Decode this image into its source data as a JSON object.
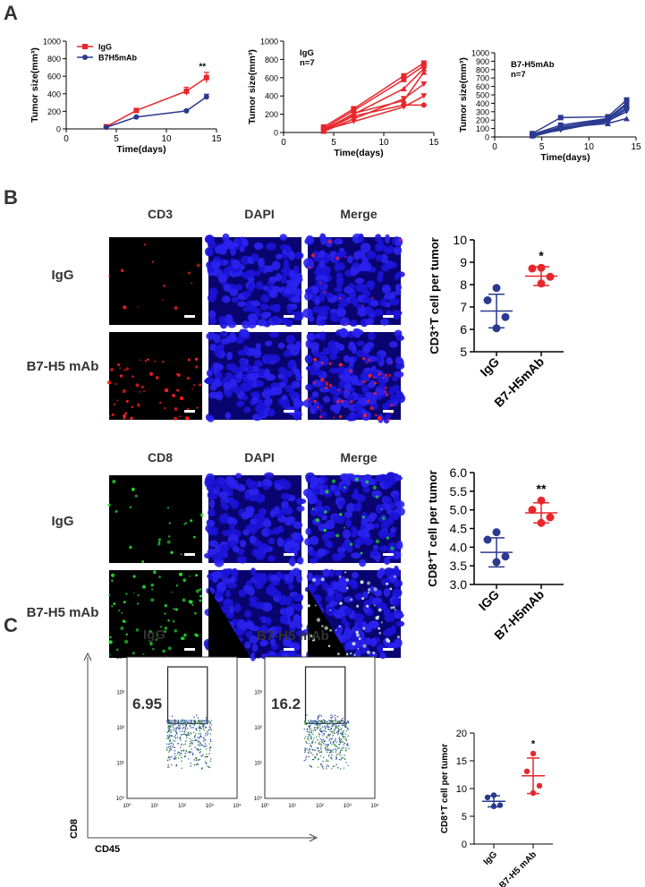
{
  "panels": {
    "a": "A",
    "b": "B",
    "c": "C"
  },
  "colors": {
    "igg": "#e8262b",
    "b7h5": "#2b3990",
    "dapi": "#1a12c8",
    "cd3": "#ff2020",
    "cd8": "#22dd33"
  },
  "chart_data": [
    {
      "type": "line",
      "id": "a1",
      "xlabel": "Time(days)",
      "ylabel": "Tumor size(mm³)",
      "xlim": [
        0,
        15
      ],
      "ylim": [
        0,
        1000
      ],
      "xticks": [
        0,
        5,
        10,
        15
      ],
      "yticks": [
        0,
        200,
        400,
        600,
        800,
        1000
      ],
      "x": [
        4,
        7,
        12,
        14
      ],
      "series": [
        {
          "name": "IgG",
          "color": "#e8262b",
          "marker": "square",
          "values": [
            25,
            210,
            430,
            585
          ],
          "err": [
            5,
            15,
            45,
            60
          ]
        },
        {
          "name": "B7H5mAb",
          "color": "#2b3990",
          "marker": "circle",
          "values": [
            18,
            135,
            205,
            365
          ],
          "err": [
            5,
            10,
            15,
            30
          ]
        }
      ],
      "annotations": [
        {
          "text": "**",
          "x": 13.6,
          "y": 680
        }
      ]
    },
    {
      "type": "line",
      "id": "a2",
      "title": "IgG",
      "subtitle": "n=7",
      "xlabel": "Time(days)",
      "ylabel": "Tumor size(mm³)",
      "xlim": [
        0,
        15
      ],
      "ylim": [
        0,
        1000
      ],
      "xticks": [
        0,
        5,
        10,
        15
      ],
      "yticks": [
        0,
        200,
        400,
        600,
        800,
        1000
      ],
      "x": [
        4,
        7,
        12,
        14
      ],
      "color": "#e8262b",
      "series": [
        {
          "name": "m1",
          "values": [
            60,
            260,
            620,
            760
          ]
        },
        {
          "name": "m2",
          "values": [
            40,
            240,
            580,
            730
          ]
        },
        {
          "name": "m3",
          "values": [
            30,
            200,
            480,
            700
          ]
        },
        {
          "name": "m4",
          "values": [
            20,
            180,
            300,
            300
          ]
        },
        {
          "name": "m5",
          "values": [
            10,
            150,
            370,
            530
          ]
        },
        {
          "name": "m6",
          "values": [
            15,
            210,
            350,
            660
          ]
        },
        {
          "name": "m7",
          "values": [
            25,
            120,
            280,
            400
          ]
        }
      ]
    },
    {
      "type": "line",
      "id": "a3",
      "title": "B7-H5mAb",
      "subtitle": "n=7",
      "xlabel": "Time(days)",
      "ylabel": "Tumor size(mm³)",
      "xlim": [
        0,
        15
      ],
      "ylim": [
        0,
        1000
      ],
      "xticks": [
        0,
        5,
        10,
        15
      ],
      "yticks": [
        0,
        100,
        200,
        300,
        400,
        500,
        600,
        700,
        800,
        900,
        1000
      ],
      "x": [
        4,
        7,
        12,
        14
      ],
      "color": "#2b3990",
      "series": [
        {
          "name": "m1",
          "values": [
            40,
            230,
            240,
            440
          ]
        },
        {
          "name": "m2",
          "values": [
            30,
            140,
            220,
            400
          ]
        },
        {
          "name": "m3",
          "values": [
            20,
            120,
            210,
            380
          ]
        },
        {
          "name": "m4",
          "values": [
            10,
            100,
            200,
            350
          ]
        },
        {
          "name": "m5",
          "values": [
            5,
            90,
            180,
            330
          ]
        },
        {
          "name": "m6",
          "values": [
            15,
            110,
            160,
            220
          ]
        },
        {
          "name": "m7",
          "values": [
            25,
            80,
            190,
            300
          ]
        }
      ]
    },
    {
      "type": "scatter",
      "id": "b1",
      "ylabel": "CD3⁺T cell per tumor",
      "categories": [
        "IgG",
        "B7-H5mAb"
      ],
      "ylim": [
        5,
        10
      ],
      "yticks": [
        5,
        6,
        7,
        8,
        9,
        10
      ],
      "series": [
        {
          "name": "IgG",
          "color": "#2b3990",
          "points": [
            7.85,
            7.3,
            6.55,
            6.05
          ],
          "mean": 6.82,
          "sd": 0.75
        },
        {
          "name": "B7-H5mAb",
          "color": "#e8262b",
          "points": [
            8.75,
            8.72,
            8.35,
            8.05
          ],
          "mean": 8.38,
          "sd": 0.42
        }
      ],
      "annotations": [
        {
          "text": "*",
          "category": "B7-H5mAb",
          "y": 9.1
        }
      ]
    },
    {
      "type": "scatter",
      "id": "b2",
      "ylabel": "CD8⁺T cell per tumor",
      "categories": [
        "IGG",
        "B7-H5mAb"
      ],
      "ylim": [
        3.0,
        6.0
      ],
      "yticks": [
        "3.0",
        "3.5",
        "4.0",
        "4.5",
        "5.0",
        "5.5",
        "6.0"
      ],
      "series": [
        {
          "name": "IGG",
          "color": "#2b3990",
          "points": [
            4.4,
            4.2,
            3.75,
            3.6
          ],
          "mean": 3.86,
          "sd": 0.39
        },
        {
          "name": "B7-H5mAb",
          "color": "#e8262b",
          "points": [
            5.25,
            5.0,
            4.8,
            4.65
          ],
          "mean": 4.92,
          "sd": 0.27
        }
      ],
      "annotations": [
        {
          "text": "**",
          "category": "B7-H5mAb",
          "y": 5.45
        }
      ]
    },
    {
      "type": "scatter",
      "id": "c1",
      "ylabel": "CD8⁺T cell per tumor",
      "categories": [
        "IgG",
        "B7-H5 mAb"
      ],
      "ylim": [
        0,
        20
      ],
      "yticks": [
        0,
        5,
        10,
        15,
        20
      ],
      "series": [
        {
          "name": "IgG",
          "color": "#2b3990",
          "points": [
            8.8,
            8.4,
            7.0,
            6.8
          ],
          "mean": 7.7,
          "sd": 1.0
        },
        {
          "name": "B7-H5 mAb",
          "color": "#e8262b",
          "points": [
            16.3,
            13.1,
            10.5,
            9.2
          ],
          "mean": 12.3,
          "sd": 3.2
        }
      ],
      "annotations": [
        {
          "text": "*",
          "category": "B7-H5 mAb",
          "y": 17.5
        }
      ]
    }
  ],
  "legend_a1": [
    {
      "label": "IgG",
      "color": "#e8262b"
    },
    {
      "label": "B7H5mAb",
      "color": "#2b3990"
    }
  ],
  "microscopy": {
    "cd3_block": {
      "columns": [
        "CD3",
        "DAPI",
        "Merge"
      ],
      "rows": [
        "IgG",
        "B7-H5 mAb"
      ]
    },
    "cd8_block": {
      "columns": [
        "CD8",
        "DAPI",
        "Merge"
      ],
      "rows": [
        "IgG",
        "B7-H5 mAb"
      ]
    }
  },
  "flow": {
    "plots": [
      {
        "title": "IgG",
        "gate_value": "6.95"
      },
      {
        "title": "B7-H5 mAb",
        "gate_value": "16.2"
      }
    ],
    "xaxis": "CD45",
    "yaxis": "CD8",
    "ticks": [
      "10⁰",
      "10¹",
      "10²",
      "10³",
      "10⁴"
    ]
  }
}
